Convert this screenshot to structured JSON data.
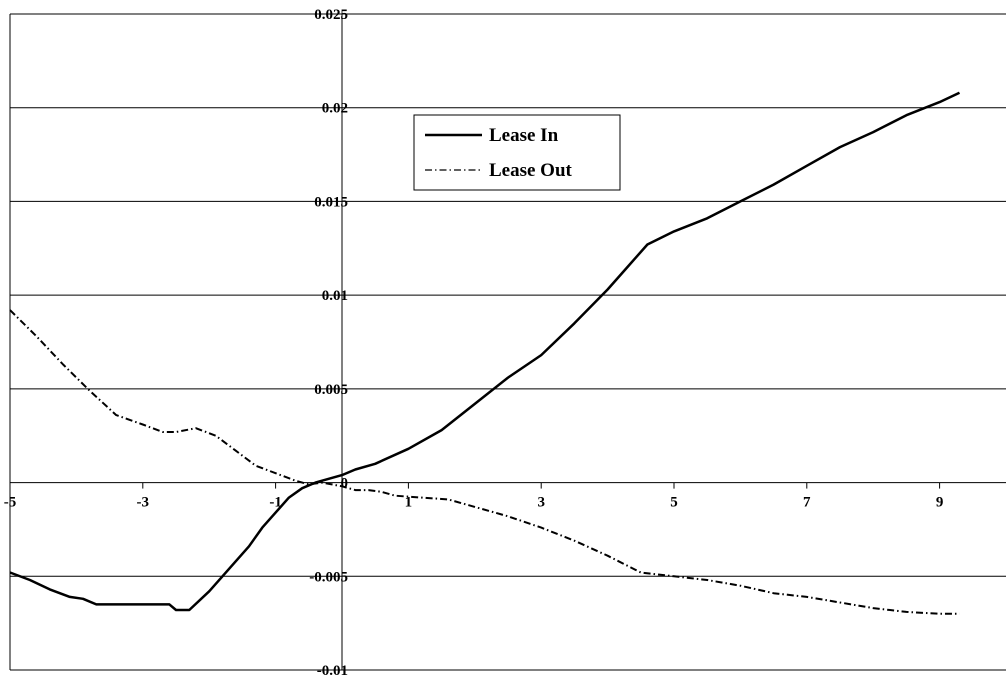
{
  "chart_data": {
    "type": "line",
    "title": "",
    "xlabel": "",
    "ylabel": "",
    "xlim": [
      -5,
      10
    ],
    "ylim": [
      -0.01,
      0.025
    ],
    "grid": "horizontal",
    "legend_position": "top-center",
    "x_ticks": [
      "-5",
      "-3",
      "-1",
      "1",
      "3",
      "5",
      "7",
      "9"
    ],
    "y_ticks": [
      "-0.01",
      "-0.005",
      "0",
      "0.005",
      "0.01",
      "0.015",
      "0.02",
      "0.025"
    ],
    "series": [
      {
        "name": "Lease In",
        "style": "solid",
        "color": "#000000",
        "points": [
          [
            -5,
            -0.0048
          ],
          [
            -4.7,
            -0.0052
          ],
          [
            -4.4,
            -0.0057
          ],
          [
            -4.1,
            -0.0061
          ],
          [
            -3.9,
            -0.0062
          ],
          [
            -3.7,
            -0.0065
          ],
          [
            -3.4,
            -0.0065
          ],
          [
            -3.0,
            -0.0065
          ],
          [
            -2.6,
            -0.0065
          ],
          [
            -2.5,
            -0.0068
          ],
          [
            -2.3,
            -0.0068
          ],
          [
            -2.0,
            -0.0058
          ],
          [
            -1.7,
            -0.0046
          ],
          [
            -1.4,
            -0.0034
          ],
          [
            -1.2,
            -0.0024
          ],
          [
            -1.0,
            -0.0016
          ],
          [
            -0.8,
            -0.0008
          ],
          [
            -0.6,
            -0.0003
          ],
          [
            -0.4,
            0.0
          ],
          [
            -0.2,
            0.0002
          ],
          [
            0.0,
            0.0004
          ],
          [
            0.2,
            0.0007
          ],
          [
            0.5,
            0.001
          ],
          [
            1.0,
            0.0018
          ],
          [
            1.5,
            0.0028
          ],
          [
            2.0,
            0.0042
          ],
          [
            2.5,
            0.0056
          ],
          [
            3.0,
            0.0068
          ],
          [
            3.5,
            0.0085
          ],
          [
            4.0,
            0.0103
          ],
          [
            4.3,
            0.0115
          ],
          [
            4.6,
            0.0127
          ],
          [
            5.0,
            0.0134
          ],
          [
            5.5,
            0.0141
          ],
          [
            6.0,
            0.015
          ],
          [
            6.5,
            0.0159
          ],
          [
            7.0,
            0.0169
          ],
          [
            7.5,
            0.0179
          ],
          [
            8.0,
            0.0187
          ],
          [
            8.5,
            0.0196
          ],
          [
            9.0,
            0.0203
          ],
          [
            9.3,
            0.0208
          ]
        ]
      },
      {
        "name": "Lease Out",
        "style": "dashdot",
        "color": "#000000",
        "points": [
          [
            -5,
            0.0092
          ],
          [
            -4.6,
            0.0078
          ],
          [
            -4.2,
            0.0063
          ],
          [
            -3.8,
            0.0049
          ],
          [
            -3.4,
            0.0036
          ],
          [
            -3.0,
            0.0031
          ],
          [
            -2.7,
            0.0027
          ],
          [
            -2.5,
            0.0027
          ],
          [
            -2.2,
            0.0029
          ],
          [
            -1.9,
            0.0025
          ],
          [
            -1.6,
            0.0017
          ],
          [
            -1.3,
            0.0009
          ],
          [
            -1.0,
            0.0005
          ],
          [
            -0.7,
            0.0001
          ],
          [
            -0.5,
            -0.0001
          ],
          [
            -0.3,
            0.0
          ],
          [
            0.0,
            -0.0002
          ],
          [
            0.2,
            -0.0004
          ],
          [
            0.4,
            -0.0004
          ],
          [
            0.6,
            -0.0005
          ],
          [
            0.8,
            -0.0007
          ],
          [
            1.2,
            -0.0008
          ],
          [
            1.6,
            -0.0009
          ],
          [
            2.0,
            -0.0013
          ],
          [
            2.5,
            -0.0018
          ],
          [
            3.0,
            -0.0024
          ],
          [
            3.5,
            -0.0031
          ],
          [
            4.0,
            -0.0039
          ],
          [
            4.5,
            -0.0048
          ],
          [
            5.0,
            -0.005
          ],
          [
            5.5,
            -0.0052
          ],
          [
            6.0,
            -0.0055
          ],
          [
            6.5,
            -0.0059
          ],
          [
            7.0,
            -0.0061
          ],
          [
            7.5,
            -0.0064
          ],
          [
            8.0,
            -0.0067
          ],
          [
            8.5,
            -0.0069
          ],
          [
            9.0,
            -0.007
          ],
          [
            9.3,
            -0.007
          ]
        ]
      }
    ]
  }
}
